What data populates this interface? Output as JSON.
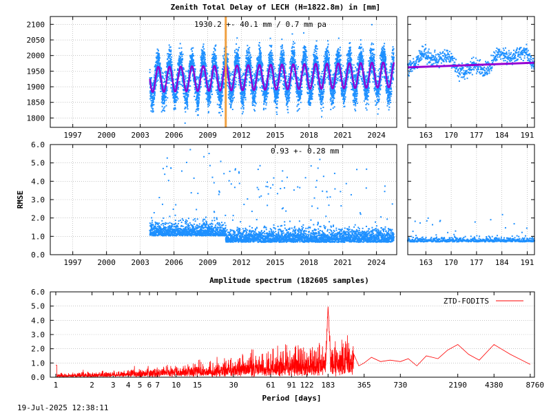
{
  "texts": {
    "main_title": "Zenith Total Delay of LECH (H=1822.8m) in [mm]",
    "ztd_stats": "1930.2 +-  40.1 mm /  0.7 mm pa",
    "rmse_stats": "0.93 +-  0.28 mm",
    "spectrum_title": "Amplitude spectrum (182605 samples)",
    "timestamp": "19-Jul-2025 12:38:11"
  },
  "chart_data": [
    {
      "id": "ztd_long",
      "type": "scatter",
      "title": "Zenith Total Delay of LECH (H=1822.8m) in [mm]",
      "annotation": "1930.2 +-  40.1 mm /  0.7 mm pa",
      "xlim": [
        1995.0,
        2025.8
      ],
      "ylim": [
        1770,
        2125
      ],
      "xticks": [
        "1997",
        "2000",
        "2003",
        "2006",
        "2009",
        "2012",
        "2015",
        "2018",
        "2021",
        "2024"
      ],
      "yticks": [
        "1800",
        "1850",
        "1900",
        "1950",
        "2000",
        "2050",
        "2100"
      ],
      "data_start": 2003.85,
      "data_end": 2025.55,
      "series": [
        {
          "kind": "observations",
          "color": "#1e90ff",
          "mean": 1930.2,
          "seasonal_amplitude": 55,
          "scatter": 25
        },
        {
          "kind": "model fit",
          "color": "#9400d3",
          "mean": 1930.2,
          "seasonal_amplitude": 40,
          "trend_mm_per_year": 0.7
        }
      ],
      "event_lines": [
        {
          "x": 2010.6,
          "color": "#f0a040"
        }
      ]
    },
    {
      "id": "ztd_recent",
      "type": "scatter",
      "xlim": [
        158,
        193
      ],
      "ylim": [
        1770,
        2125
      ],
      "xticks": [
        "163",
        "170",
        "177",
        "184",
        "191"
      ],
      "series": [
        {
          "kind": "observations",
          "color": "#1e90ff"
        },
        {
          "kind": "model fit",
          "color": "#9400d3",
          "y_start": 1962,
          "y_end": 1977
        }
      ]
    },
    {
      "id": "rmse_long",
      "type": "scatter",
      "ylabel": "RMSE",
      "annotation": "0.93 +-  0.28 mm",
      "xlim": [
        1995.0,
        2025.8
      ],
      "ylim": [
        0.0,
        6.0
      ],
      "xticks": [
        "1997",
        "2000",
        "2003",
        "2006",
        "2009",
        "2012",
        "2015",
        "2018",
        "2021",
        "2024"
      ],
      "yticks": [
        "0.0",
        "1.0",
        "2.0",
        "3.0",
        "4.0",
        "5.0",
        "6.0"
      ],
      "series": [
        {
          "kind": "observations",
          "color": "#1e90ff",
          "mean": 0.93,
          "std": 0.28
        }
      ]
    },
    {
      "id": "rmse_recent",
      "type": "scatter",
      "xlim": [
        158,
        193
      ],
      "ylim": [
        0.0,
        6.0
      ],
      "xticks": [
        "163",
        "170",
        "177",
        "184",
        "191"
      ],
      "series": [
        {
          "kind": "observations",
          "color": "#1e90ff",
          "mean": 0.75
        }
      ]
    },
    {
      "id": "spectrum",
      "type": "line",
      "title": "Amplitude spectrum (182605 samples)",
      "xlabel": "Period [days]",
      "log_x": true,
      "xlim": [
        0.9,
        9500
      ],
      "ylim": [
        0.0,
        6.0
      ],
      "xticks": [
        "1",
        "2",
        "3",
        "4",
        "5",
        "6",
        "7",
        "10",
        "15",
        "30",
        "61",
        "91",
        "122",
        "183",
        "365",
        "730",
        "2190",
        "4380",
        "8760"
      ],
      "yticks": [
        "0.0",
        "1.0",
        "2.0",
        "3.0",
        "4.0",
        "5.0",
        "6.0"
      ],
      "series": [
        {
          "name": "ZTD-FODITS",
          "color": "#ff0000",
          "peaks": [
            {
              "period": 1,
              "amplitude": 0.85
            },
            {
              "period": 183,
              "amplitude": 5.0
            },
            {
              "period": 365,
              "amplitude": 1.0
            },
            {
              "period": 2190,
              "amplitude": 2.3
            },
            {
              "period": 4380,
              "amplitude": 2.3
            },
            {
              "period": 8760,
              "amplitude": 0.9
            }
          ]
        }
      ]
    }
  ]
}
